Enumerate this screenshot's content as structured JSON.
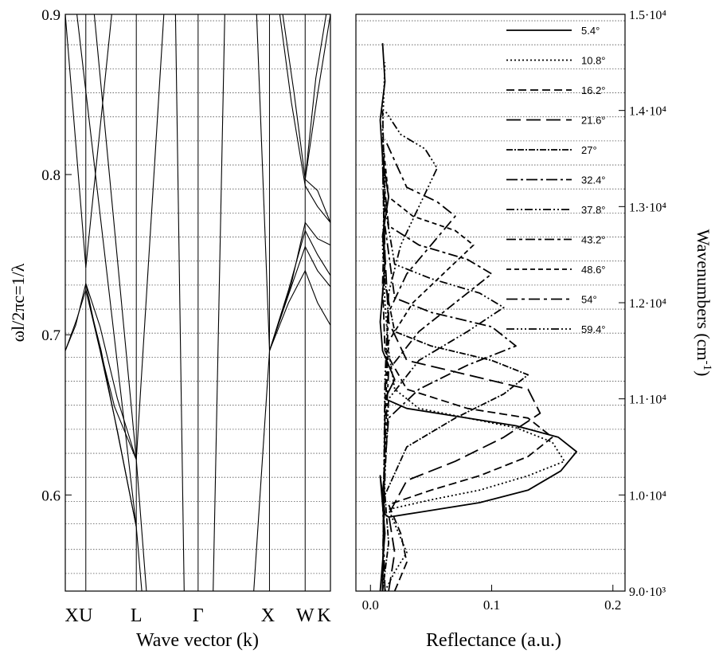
{
  "chart_data": [
    {
      "type": "line",
      "panel": "band-structure",
      "xlabel": "Wave vector (k)",
      "ylabel": "ωl/2πc=1/λ",
      "ylim": [
        0.54,
        0.9
      ],
      "y_ticks": [
        "0.6",
        "0.7",
        "0.8",
        "0.9"
      ],
      "x_ticks": [
        {
          "label": "X",
          "k": 0.0
        },
        {
          "label": "U",
          "k": 0.354
        },
        {
          "label": "L",
          "k": 1.225
        },
        {
          "label": "Γ",
          "k": 2.291
        },
        {
          "label": "X",
          "k": 3.522
        },
        {
          "label": "W",
          "k": 4.137
        },
        {
          "label": "K",
          "k": 4.573
        }
      ],
      "reference_lines": [
        0.551,
        0.566,
        0.582,
        0.596,
        0.611,
        0.626,
        0.641,
        0.656,
        0.671,
        0.686,
        0.701,
        0.716,
        0.731,
        0.746,
        0.761,
        0.776,
        0.791,
        0.806,
        0.821,
        0.836,
        0.851,
        0.866,
        0.881,
        0.896
      ],
      "series": [
        {
          "x": [
            0.0,
            0.354
          ],
          "y": [
            0.9,
            0.742
          ]
        },
        {
          "x": [
            0.354,
            0.8
          ],
          "y": [
            0.742,
            0.9
          ]
        },
        {
          "x": [
            1.225,
            0.5
          ],
          "y": [
            0.622,
            0.9
          ]
        },
        {
          "x": [
            1.225,
            1.7
          ],
          "y": [
            0.622,
            0.9
          ]
        },
        {
          "x": [
            0.0,
            0.18,
            0.354,
            0.55,
            0.85,
            1.225
          ],
          "y": [
            0.69,
            0.706,
            0.732,
            0.698,
            0.655,
            0.622
          ]
        },
        {
          "x": [
            0.0,
            0.2,
            0.354,
            0.6,
            0.9,
            1.225
          ],
          "y": [
            0.69,
            0.71,
            0.728,
            0.69,
            0.64,
            0.58
          ]
        },
        {
          "x": [
            0.354,
            0.6,
            0.9,
            1.225,
            1.4
          ],
          "y": [
            0.732,
            0.705,
            0.66,
            0.622,
            0.54
          ]
        },
        {
          "x": [
            0.354,
            0.62,
            0.95,
            1.225,
            1.32
          ],
          "y": [
            0.728,
            0.69,
            0.63,
            0.58,
            0.54
          ]
        },
        {
          "x": [
            1.225,
            0.2,
            0.0
          ],
          "y": [
            0.58,
            0.9,
            0.9
          ]
        },
        {
          "x": [
            2.05,
            2.291,
            2.55
          ],
          "y": [
            0.54,
            0.54,
            0.54
          ]
        },
        {
          "x": [
            1.9,
            2.05
          ],
          "y": [
            0.9,
            0.54
          ]
        },
        {
          "x": [
            2.55,
            2.75
          ],
          "y": [
            0.54,
            0.9
          ]
        },
        {
          "x": [
            3.522,
            3.3
          ],
          "y": [
            0.69,
            0.9
          ]
        },
        {
          "x": [
            3.522,
            3.25
          ],
          "y": [
            0.69,
            0.54
          ]
        },
        {
          "x": [
            3.522,
            3.85,
            4.137,
            4.35,
            4.573
          ],
          "y": [
            0.69,
            0.72,
            0.74,
            0.72,
            0.706
          ]
        },
        {
          "x": [
            3.522,
            3.85,
            4.137,
            4.35,
            4.573
          ],
          "y": [
            0.69,
            0.725,
            0.755,
            0.74,
            0.73
          ]
        },
        {
          "x": [
            3.522,
            3.85,
            4.137,
            4.35,
            4.573
          ],
          "y": [
            0.69,
            0.728,
            0.765,
            0.75,
            0.737
          ]
        },
        {
          "x": [
            3.522,
            3.9,
            4.137,
            4.35,
            4.573
          ],
          "y": [
            0.69,
            0.732,
            0.77,
            0.76,
            0.756
          ]
        },
        {
          "x": [
            3.7,
            3.9,
            4.137,
            4.35,
            4.573
          ],
          "y": [
            0.9,
            0.845,
            0.793,
            0.78,
            0.77
          ]
        },
        {
          "x": [
            3.75,
            3.95,
            4.137,
            4.35,
            4.573
          ],
          "y": [
            0.9,
            0.85,
            0.797,
            0.79,
            0.77
          ]
        },
        {
          "x": [
            4.137,
            4.35,
            4.573
          ],
          "y": [
            0.797,
            0.85,
            0.9
          ]
        },
        {
          "x": [
            4.137,
            4.32,
            4.5
          ],
          "y": [
            0.797,
            0.86,
            0.9
          ]
        }
      ]
    },
    {
      "type": "line",
      "panel": "reflectance",
      "xlabel": "Reflectance (a.u.)",
      "ylabel": "Wavenumbers (cm-1)",
      "xlim": [
        -0.012,
        0.21
      ],
      "ylim": [
        9000,
        15000
      ],
      "x_ticks": [
        "0.0",
        "0.1",
        "0.2"
      ],
      "y_ticks": [
        "9.0·10³",
        "1.0·10⁴",
        "1.1·10⁴",
        "1.2·10⁴",
        "1.3·10⁴",
        "1.4·10⁴",
        "1.5·10⁴"
      ],
      "series": [
        {
          "name": "5.4°",
          "dash": "solid",
          "x": [
            0.008,
            0.01,
            0.012,
            0.01,
            0.008,
            0.012,
            0.015,
            0.04,
            0.09,
            0.13,
            0.157,
            0.17,
            0.155,
            0.12,
            0.07,
            0.03,
            0.012,
            0.02,
            0.01,
            0.008,
            0.01,
            0.012,
            0.01,
            0.015,
            0.01,
            0.008,
            0.012,
            0.01
          ],
          "y": [
            9000,
            9300,
            9600,
            9900,
            10200,
            9800,
            9770,
            9820,
            9920,
            10050,
            10250,
            10450,
            10600,
            10720,
            10820,
            10900,
            11000,
            11200,
            11500,
            11800,
            12100,
            12400,
            12700,
            13100,
            13500,
            13900,
            14300,
            14700
          ]
        },
        {
          "name": "10.8°",
          "dash": "2,3",
          "x": [
            0.012,
            0.02,
            0.03,
            0.02,
            0.015,
            0.05,
            0.09,
            0.13,
            0.16,
            0.15,
            0.12,
            0.08,
            0.04,
            0.02,
            0.015,
            0.012,
            0.01,
            0.012,
            0.01,
            0.012
          ],
          "y": [
            9000,
            9200,
            9400,
            9700,
            9850,
            9950,
            10050,
            10200,
            10350,
            10550,
            10700,
            10800,
            10900,
            11100,
            11500,
            12000,
            12600,
            13200,
            13800,
            14500
          ]
        },
        {
          "name": "16.2°",
          "dash": "10,5",
          "x": [
            0.02,
            0.03,
            0.025,
            0.015,
            0.05,
            0.09,
            0.13,
            0.15,
            0.13,
            0.08,
            0.03,
            0.012,
            0.01,
            0.012,
            0.01
          ],
          "y": [
            9000,
            9300,
            9600,
            9900,
            10050,
            10200,
            10400,
            10600,
            10800,
            10900,
            11100,
            11500,
            12200,
            13000,
            14000
          ]
        },
        {
          "name": "21.6°",
          "dash": "18,7",
          "x": [
            0.015,
            0.02,
            0.015,
            0.03,
            0.07,
            0.11,
            0.14,
            0.13,
            0.08,
            0.03,
            0.015,
            0.012,
            0.01
          ],
          "y": [
            9000,
            9400,
            9800,
            10150,
            10350,
            10600,
            10850,
            11100,
            11250,
            11400,
            11800,
            12500,
            13500
          ]
        },
        {
          "name": "27°",
          "dash": "8,2,2,2",
          "x": [
            0.01,
            0.015,
            0.012,
            0.03,
            0.07,
            0.11,
            0.13,
            0.1,
            0.05,
            0.02,
            0.012,
            0.01
          ],
          "y": [
            9000,
            9500,
            10000,
            10500,
            10800,
            11050,
            11250,
            11400,
            11550,
            11700,
            12200,
            13500
          ]
        },
        {
          "name": "32.4°",
          "dash": "14,4,3,4",
          "x": [
            0.012,
            0.01,
            0.015,
            0.04,
            0.08,
            0.12,
            0.1,
            0.05,
            0.02,
            0.012
          ],
          "y": [
            9000,
            10000,
            10800,
            11100,
            11350,
            11550,
            11750,
            11900,
            12050,
            12800
          ]
        },
        {
          "name": "37.8°",
          "dash": "10,3,2,3,2,3",
          "x": [
            0.01,
            0.012,
            0.015,
            0.04,
            0.08,
            0.11,
            0.09,
            0.05,
            0.02,
            0.012
          ],
          "y": [
            9000,
            10200,
            11000,
            11400,
            11700,
            11950,
            12100,
            12250,
            12400,
            13000
          ]
        },
        {
          "name": "43.2°",
          "dash": "12,4,4,4",
          "x": [
            0.01,
            0.012,
            0.015,
            0.04,
            0.07,
            0.1,
            0.08,
            0.04,
            0.015,
            0.01
          ],
          "y": [
            9000,
            10500,
            11300,
            11700,
            12000,
            12300,
            12450,
            12600,
            12800,
            13400
          ]
        },
        {
          "name": "48.6°",
          "dash": "6,4",
          "x": [
            0.01,
            0.012,
            0.015,
            0.035,
            0.06,
            0.085,
            0.07,
            0.035,
            0.015,
            0.01
          ],
          "y": [
            9000,
            10800,
            11600,
            12000,
            12300,
            12600,
            12750,
            12900,
            13100,
            13700
          ]
        },
        {
          "name": "54°",
          "dash": "14,5,4,5",
          "x": [
            0.01,
            0.012,
            0.015,
            0.03,
            0.05,
            0.07,
            0.055,
            0.03,
            0.012
          ],
          "y": [
            9000,
            11000,
            11900,
            12300,
            12600,
            12900,
            13050,
            13200,
            13700
          ]
        },
        {
          "name": "59.4°",
          "dash": "10,3,2,3,2,3,2,3",
          "x": [
            0.01,
            0.012,
            0.015,
            0.025,
            0.04,
            0.055,
            0.045,
            0.025,
            0.012
          ],
          "y": [
            9000,
            11200,
            12100,
            12600,
            13000,
            13400,
            13600,
            13750,
            14000
          ]
        }
      ]
    }
  ]
}
